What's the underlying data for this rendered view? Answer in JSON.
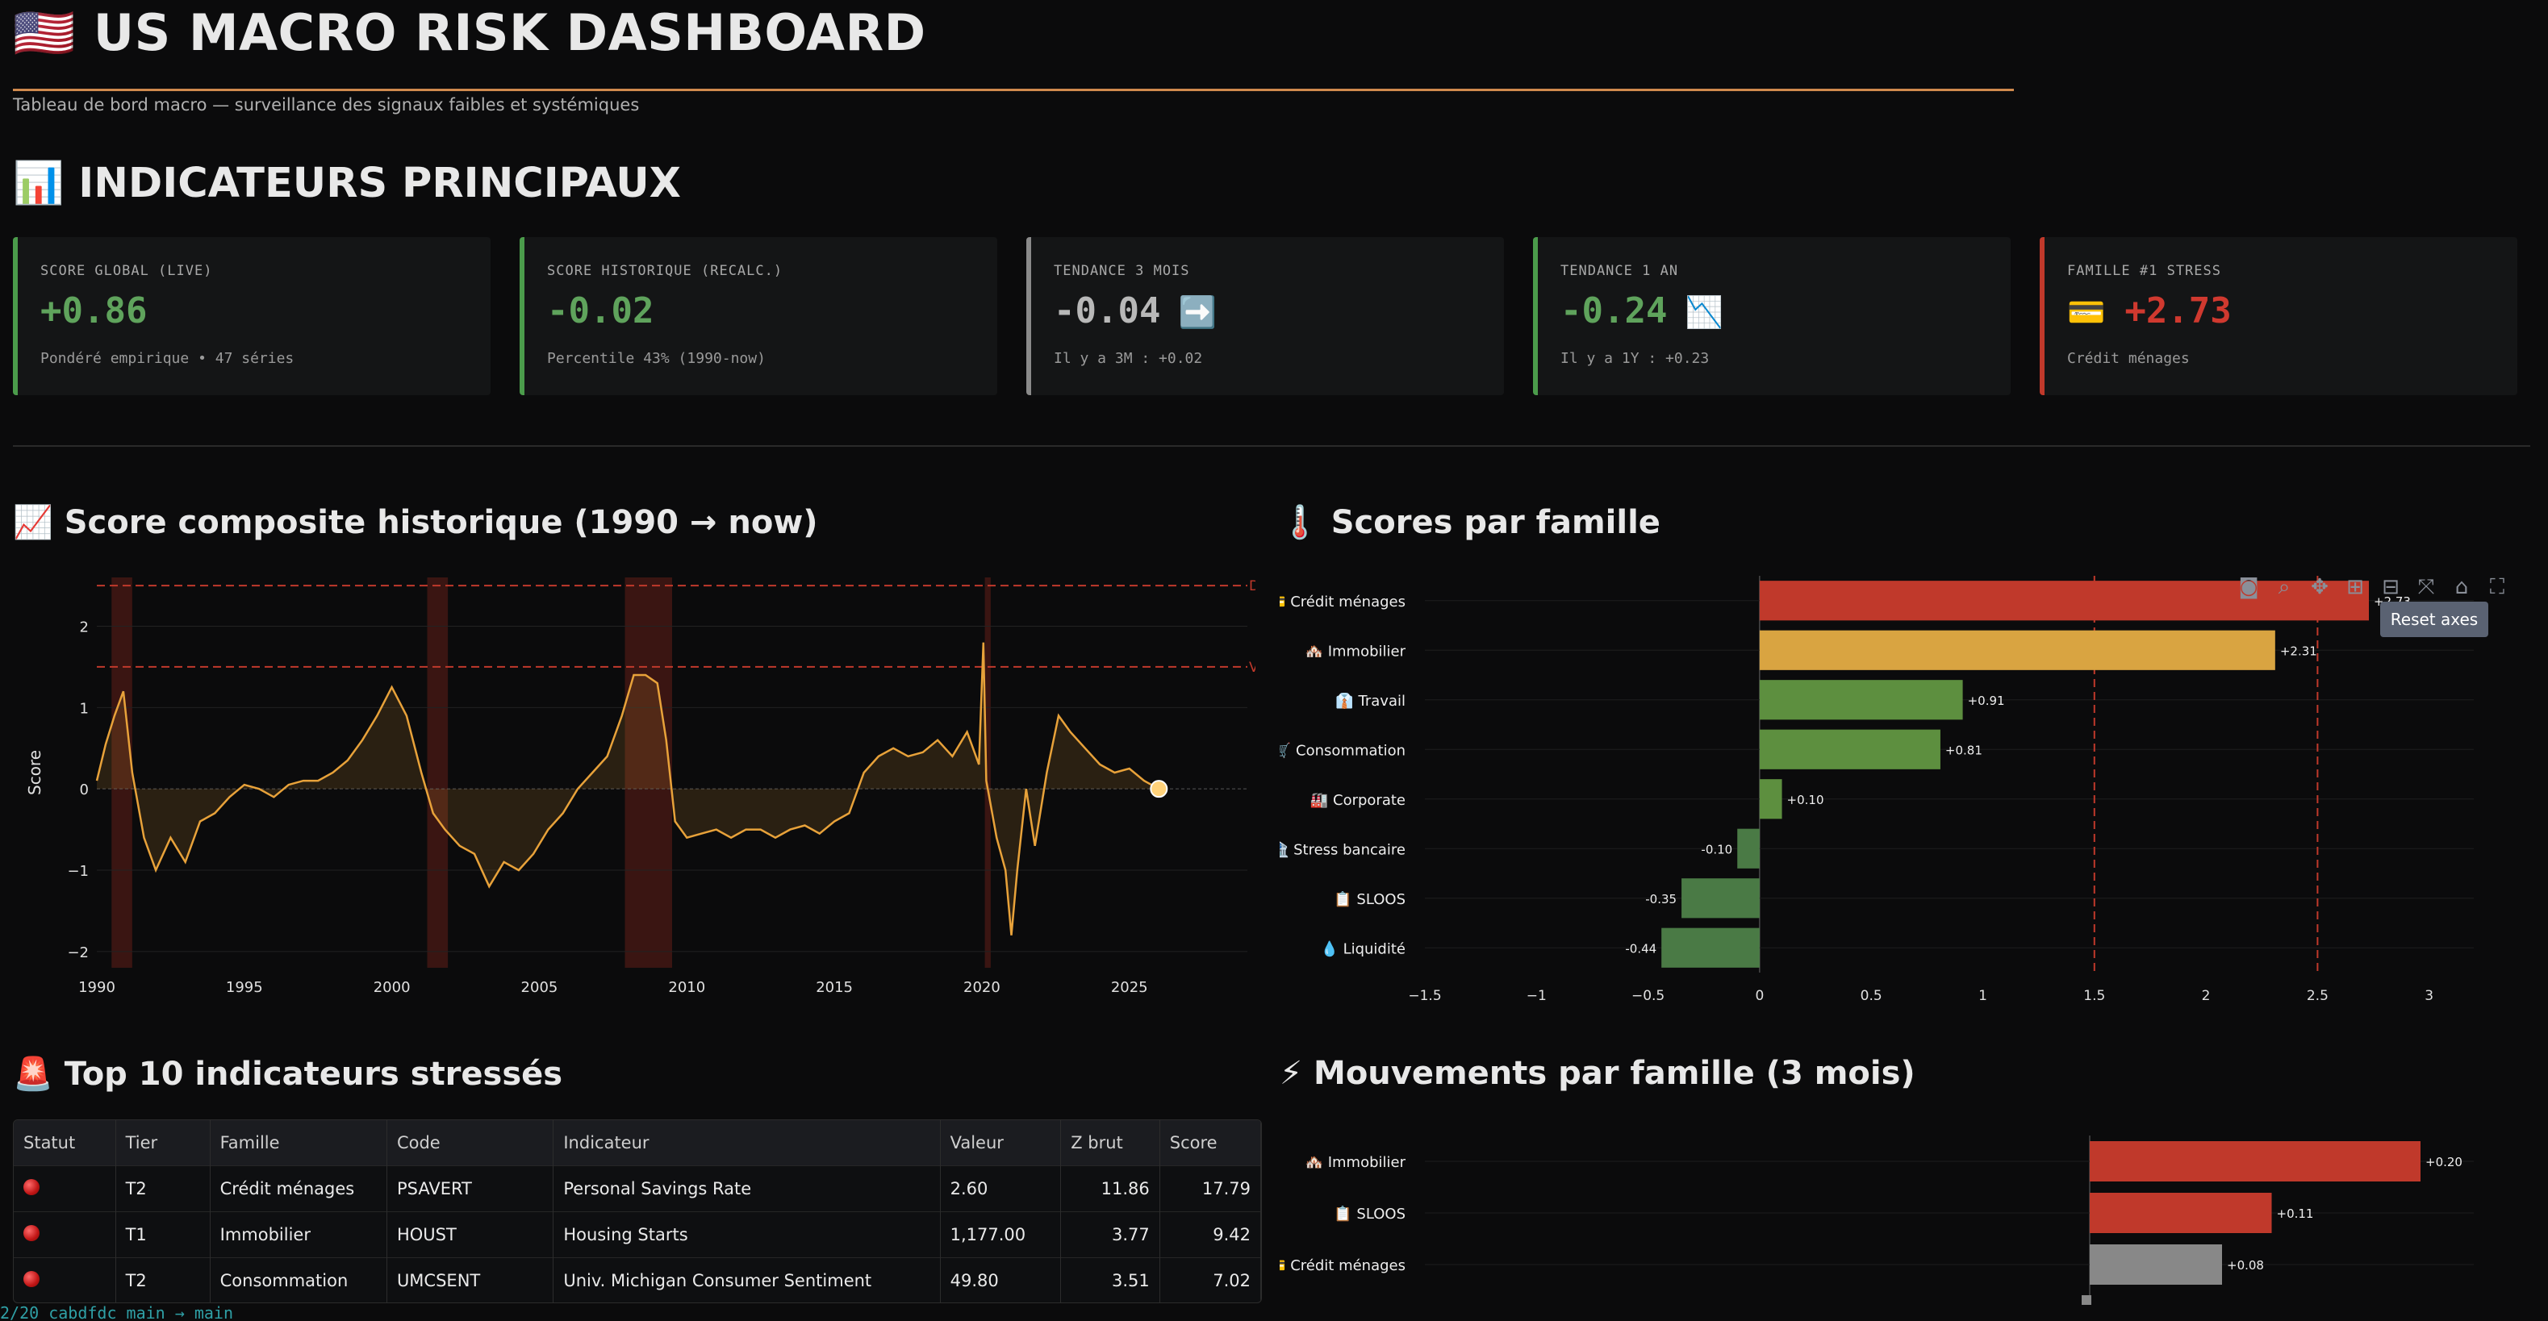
{
  "header": {
    "title": "🇺🇸 US MACRO RISK DASHBOARD",
    "subtitle": "Tableau de bord macro — surveillance des signaux faibles et systémiques"
  },
  "sections": {
    "main_indicators": "📊 INDICATEURS PRINCIPAUX",
    "history_chart": "📈 Score composite historique (1990 → now)",
    "family_chart": "🌡️ Scores par famille",
    "top10": "🚨 Top 10 indicateurs stressés",
    "moves": "⚡ Mouvements par famille (3 mois)"
  },
  "kpis": [
    {
      "label": "SCORE GLOBAL (LIVE)",
      "icon": "",
      "value": "+0.86",
      "note": "Pondéré empirique • 47 séries",
      "color": "#4b9c4b",
      "value_color": "#5fa35c"
    },
    {
      "label": "SCORE HISTORIQUE (RECALC.)",
      "icon": "",
      "value": "-0.02",
      "note": "Percentile 43% (1990-now)",
      "color": "#4b9c4b",
      "value_color": "#5fa35c"
    },
    {
      "label": "TENDANCE 3 MOIS",
      "icon": "➡️",
      "value": "-0.04",
      "note": "Il y a 3M : +0.02",
      "color": "#8a8a8a",
      "value_color": "#b8b8b8"
    },
    {
      "label": "TENDANCE 1 AN",
      "icon": "📉",
      "value": "-0.24",
      "note": "Il y a 1Y : +0.23",
      "color": "#4b9c4b",
      "value_color": "#5fa35c"
    },
    {
      "label": "FAMILLE #1 STRESS",
      "icon": "💳",
      "value": "+2.73",
      "note": "Crédit ménages",
      "color": "#c0392b",
      "value_color": "#d0392f"
    }
  ],
  "history_chart": {
    "ylabel": "Score",
    "xticks": [
      "1990",
      "1995",
      "2000",
      "2005",
      "2010",
      "2015",
      "2020",
      "2025"
    ],
    "yticks": [
      "2",
      "1",
      "0",
      "−1",
      "−2"
    ],
    "threshold_labels": [
      "D",
      "Vi"
    ],
    "line_color": "#e8a23a",
    "recession_color": "#3a1512"
  },
  "chart_data": [
    {
      "type": "line",
      "ylabel": "Score",
      "xlim": [
        1990,
        2029
      ],
      "ylim": [
        -2.2,
        2.6
      ],
      "thresholds": [
        2.5,
        1.5
      ],
      "recessions": [
        [
          1990.5,
          1991.2
        ],
        [
          2001.2,
          2001.9
        ],
        [
          2007.9,
          2009.5
        ],
        [
          2020.1,
          2020.3
        ]
      ],
      "x": [
        1990.0,
        1990.3,
        1990.6,
        1990.9,
        1991.2,
        1991.6,
        1992.0,
        1992.5,
        1993.0,
        1993.5,
        1994.0,
        1994.5,
        1995.0,
        1995.5,
        1996.0,
        1996.5,
        1997.0,
        1997.5,
        1998.0,
        1998.5,
        1999.0,
        1999.5,
        2000.0,
        2000.5,
        2001.0,
        2001.4,
        2001.8,
        2002.3,
        2002.8,
        2003.3,
        2003.8,
        2004.3,
        2004.8,
        2005.3,
        2005.8,
        2006.3,
        2006.8,
        2007.3,
        2007.8,
        2008.2,
        2008.6,
        2009.0,
        2009.3,
        2009.6,
        2010.0,
        2010.5,
        2011.0,
        2011.5,
        2012.0,
        2012.5,
        2013.0,
        2013.5,
        2014.0,
        2014.5,
        2015.0,
        2015.5,
        2016.0,
        2016.5,
        2017.0,
        2017.5,
        2018.0,
        2018.5,
        2019.0,
        2019.5,
        2019.9,
        2020.05,
        2020.15,
        2020.3,
        2020.5,
        2020.8,
        2021.0,
        2021.2,
        2021.5,
        2021.8,
        2022.2,
        2022.6,
        2023.0,
        2023.5,
        2024.0,
        2024.5,
        2025.0,
        2025.5,
        2026.0
      ],
      "y": [
        0.1,
        0.55,
        0.9,
        1.2,
        0.2,
        -0.6,
        -1.0,
        -0.6,
        -0.9,
        -0.4,
        -0.3,
        -0.1,
        0.05,
        0.0,
        -0.1,
        0.05,
        0.1,
        0.1,
        0.2,
        0.35,
        0.6,
        0.9,
        1.25,
        0.9,
        0.2,
        -0.3,
        -0.5,
        -0.7,
        -0.8,
        -1.2,
        -0.9,
        -1.0,
        -0.8,
        -0.5,
        -0.3,
        0.0,
        0.2,
        0.4,
        0.9,
        1.4,
        1.4,
        1.3,
        0.6,
        -0.4,
        -0.6,
        -0.55,
        -0.5,
        -0.6,
        -0.5,
        -0.5,
        -0.6,
        -0.5,
        -0.45,
        -0.55,
        -0.4,
        -0.3,
        0.2,
        0.4,
        0.5,
        0.4,
        0.45,
        0.6,
        0.4,
        0.7,
        0.3,
        1.8,
        0.1,
        -0.2,
        -0.6,
        -1.0,
        -1.8,
        -1.0,
        0.0,
        -0.7,
        0.2,
        0.9,
        0.7,
        0.5,
        0.3,
        0.2,
        0.25,
        0.1,
        0.0
      ]
    },
    {
      "type": "bar",
      "orientation": "horizontal",
      "xlim": [
        -1.5,
        3.2
      ],
      "xticks": [
        "−1.5",
        "−1",
        "−0.5",
        "0",
        "0.5",
        "1",
        "1.5",
        "2",
        "2.5",
        "3"
      ],
      "thresholds": [
        1.5,
        2.5
      ],
      "categories": [
        "💳 Crédit ménages",
        "🏘️ Immobilier",
        "👔 Travail",
        "🛒 Consommation",
        "🏭 Corporate",
        "🏦 Stress bancaire",
        "📋 SLOOS",
        "💧 Liquidité"
      ],
      "values": [
        2.73,
        2.31,
        0.91,
        0.81,
        0.1,
        -0.1,
        -0.35,
        -0.44
      ],
      "labels": [
        "+2.73",
        "+2.31",
        "+0.91",
        "+0.81",
        "+0.10",
        "-0.10",
        "-0.35",
        "-0.44"
      ],
      "colors": [
        "#c0392b",
        "#d9a441",
        "#5d8f3f",
        "#5d8f3f",
        "#5d8f3f",
        "#4a7a45",
        "#4a7a45",
        "#4a7a45"
      ]
    },
    {
      "type": "bar",
      "orientation": "horizontal",
      "categories": [
        "🏘️ Immobilier",
        "📋 SLOOS",
        "💳 Crédit ménages"
      ],
      "values": [
        0.2,
        0.11,
        0.08
      ],
      "labels": [
        "+0.20",
        "+0.11",
        "+0.08"
      ],
      "colors": [
        "#c0392b",
        "#c0392b",
        "#888888"
      ]
    }
  ],
  "modebar": {
    "icons": [
      "camera-icon",
      "zoom-icon",
      "pan-icon",
      "zoom-in-icon",
      "zoom-out-icon",
      "autoscale-icon",
      "home-icon",
      "fullscreen-icon"
    ],
    "tooltip": "Reset axes"
  },
  "table": {
    "headers": [
      "Statut",
      "Tier",
      "Famille",
      "Code",
      "Indicateur",
      "Valeur",
      "Z brut",
      "Score"
    ],
    "rows": [
      {
        "tier": "T2",
        "famille": "Crédit ménages",
        "code": "PSAVERT",
        "indicateur": "Personal Savings Rate",
        "valeur": "2.60",
        "z": "11.86",
        "score": "17.79"
      },
      {
        "tier": "T1",
        "famille": "Immobilier",
        "code": "HOUST",
        "indicateur": "Housing Starts",
        "valeur": "1,177.00",
        "z": "3.77",
        "score": "9.42"
      },
      {
        "tier": "T2",
        "famille": "Consommation",
        "code": "UMCSENT",
        "indicateur": "Univ. Michigan Consumer Sentiment",
        "valeur": "49.80",
        "z": "3.51",
        "score": "7.02"
      }
    ]
  },
  "terminal": {
    "text": "2/20  cabdfdc  main → main"
  }
}
